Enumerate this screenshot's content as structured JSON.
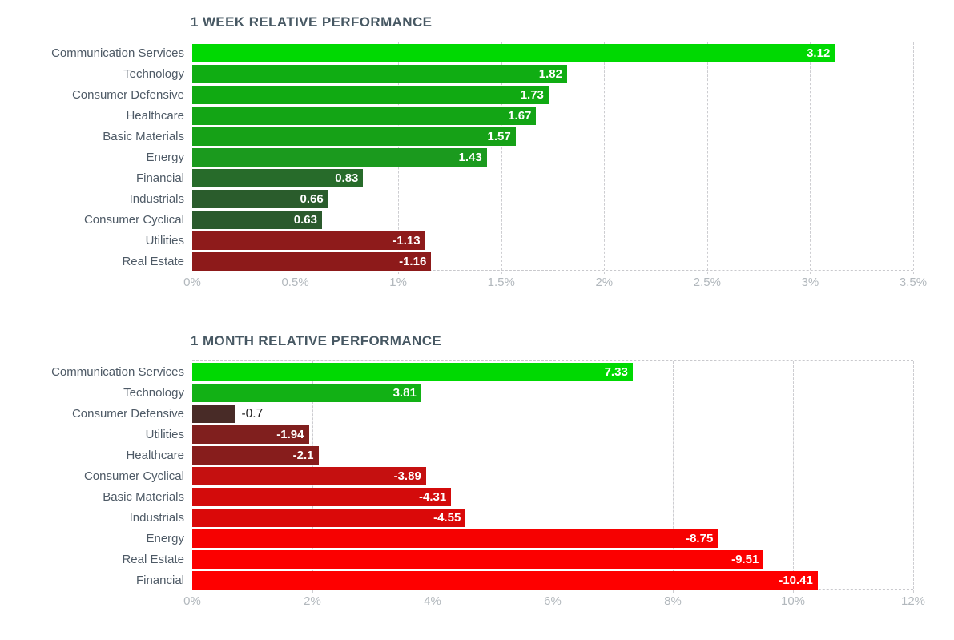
{
  "theme": {
    "background": "#ffffff",
    "title_color": "#475863",
    "category_label_color": "#4e5a66",
    "axis_label_color": "#b2b8bd",
    "grid_color": "#cdcdd1",
    "value_label_inside_color": "#ffffff",
    "value_label_outside_color": "#222222"
  },
  "chart_data": [
    {
      "type": "bar",
      "orientation": "horizontal",
      "title": "1 WEEK RELATIVE PERFORMANCE",
      "categories": [
        "Communication Services",
        "Technology",
        "Consumer Defensive",
        "Healthcare",
        "Basic Materials",
        "Energy",
        "Financial",
        "Industrials",
        "Consumer Cyclical",
        "Utilities",
        "Real Estate"
      ],
      "values": [
        3.12,
        1.82,
        1.73,
        1.67,
        1.57,
        1.43,
        0.83,
        0.66,
        0.63,
        -1.13,
        -1.16
      ],
      "value_labels": [
        "3.12",
        "1.82",
        "1.73",
        "1.67",
        "1.57",
        "1.43",
        "0.83",
        "0.66",
        "0.63",
        "-1.13",
        "-1.16"
      ],
      "bar_colors": [
        "#00d902",
        "#10ad13",
        "#10aa12",
        "#13a515",
        "#16a117",
        "#1b9a1e",
        "#276b2a",
        "#2a5c2c",
        "#2b5a2d",
        "#8e1b1b",
        "#8d1a1a"
      ],
      "xlabel": "",
      "ylabel": "",
      "axis_ticks": [
        "0%",
        "0.5%",
        "1%",
        "1.5%",
        "2%",
        "2.5%",
        "3%",
        "3.5%"
      ],
      "axis_tick_values": [
        0,
        0.5,
        1,
        1.5,
        2,
        2.5,
        3,
        3.5
      ],
      "axis_max": 3.5,
      "xlim": [
        0,
        3.5
      ],
      "grid": "vertical dashed",
      "legend": "none",
      "note": "bar length encodes absolute value; green = positive, red = negative"
    },
    {
      "type": "bar",
      "orientation": "horizontal",
      "title": "1 MONTH RELATIVE PERFORMANCE",
      "categories": [
        "Communication Services",
        "Technology",
        "Consumer Defensive",
        "Utilities",
        "Healthcare",
        "Consumer Cyclical",
        "Basic Materials",
        "Industrials",
        "Energy",
        "Real Estate",
        "Financial"
      ],
      "values": [
        7.33,
        3.81,
        -0.7,
        -1.94,
        -2.1,
        -3.89,
        -4.31,
        -4.55,
        -8.75,
        -9.51,
        -10.41
      ],
      "value_labels": [
        "7.33",
        "3.81",
        "-0.7",
        "-1.94",
        "-2.1",
        "-3.89",
        "-4.31",
        "-4.55",
        "-8.75",
        "-9.51",
        "-10.41"
      ],
      "bar_colors": [
        "#00d902",
        "#12b115",
        "#482b27",
        "#801f1e",
        "#871d1c",
        "#c51010",
        "#d30b0b",
        "#da0909",
        "#f60101",
        "#fc0000",
        "#fe0000"
      ],
      "xlabel": "",
      "ylabel": "",
      "axis_ticks": [
        "0%",
        "2%",
        "4%",
        "6%",
        "8%",
        "10%",
        "12%"
      ],
      "axis_tick_values": [
        0,
        2,
        4,
        6,
        8,
        10,
        12
      ],
      "axis_max": 12,
      "xlim": [
        0,
        12
      ],
      "grid": "vertical dashed",
      "legend": "none",
      "note": "bar length encodes absolute value; green = positive, red = negative"
    }
  ]
}
